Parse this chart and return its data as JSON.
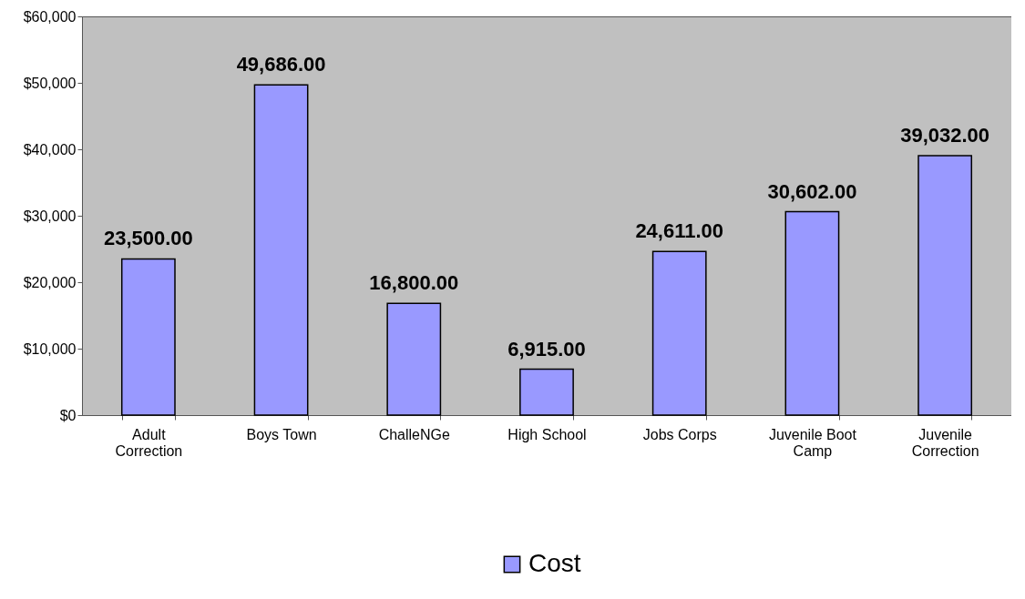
{
  "chart_data": {
    "type": "bar",
    "categories": [
      "Adult Correction",
      "Boys Town",
      "ChalleNGe",
      "High School",
      "Jobs Corps",
      "Juvenile Boot Camp",
      "Juvenile Correction"
    ],
    "series": [
      {
        "name": "Cost",
        "color": "#9999ff",
        "values": [
          23500,
          49686,
          16800,
          6915,
          24611,
          30602,
          39032
        ],
        "value_labels": [
          "23,500.00",
          "49,686.00",
          "16,800.00",
          "6,915.00",
          "24,611.00",
          "30,602.00",
          "39,032.00"
        ]
      }
    ],
    "ylim": [
      0,
      60000
    ],
    "yticks": [
      {
        "value": 0,
        "label": "$0"
      },
      {
        "value": 10000,
        "label": "$10,000"
      },
      {
        "value": 20000,
        "label": "$20,000"
      },
      {
        "value": 30000,
        "label": "$30,000"
      },
      {
        "value": 40000,
        "label": "$40,000"
      },
      {
        "value": 50000,
        "label": "$50,000"
      },
      {
        "value": 60000,
        "label": "$60,000"
      }
    ],
    "grid": false,
    "legend": "bottom"
  }
}
